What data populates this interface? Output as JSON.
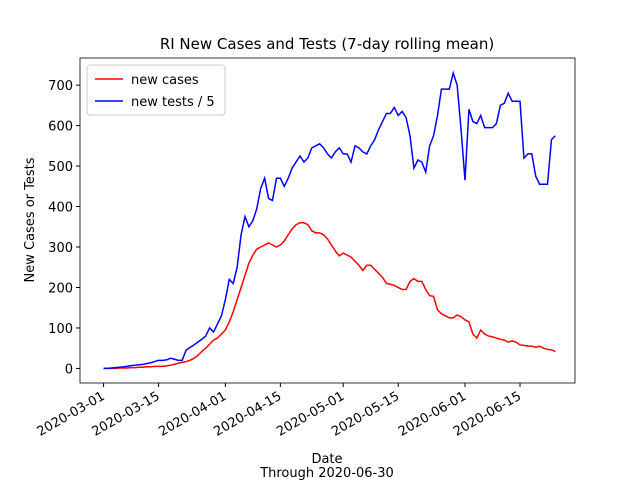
{
  "chart_data": {
    "type": "line",
    "title": "RI New Cases and Tests (7-day rolling mean)",
    "x_label": "Date",
    "subtitle": "Through 2020-06-30",
    "y_label": "New Cases or Tests",
    "legend": "upper left",
    "x": [
      "2020-03-01",
      "2020-03-02",
      "2020-03-03",
      "2020-03-04",
      "2020-03-05",
      "2020-03-06",
      "2020-03-07",
      "2020-03-08",
      "2020-03-09",
      "2020-03-10",
      "2020-03-11",
      "2020-03-12",
      "2020-03-13",
      "2020-03-14",
      "2020-03-15",
      "2020-03-16",
      "2020-03-17",
      "2020-03-18",
      "2020-03-19",
      "2020-03-20",
      "2020-03-21",
      "2020-03-22",
      "2020-03-23",
      "2020-03-24",
      "2020-03-25",
      "2020-03-26",
      "2020-03-27",
      "2020-03-28",
      "2020-03-29",
      "2020-03-30",
      "2020-03-31",
      "2020-04-01",
      "2020-04-02",
      "2020-04-03",
      "2020-04-04",
      "2020-04-05",
      "2020-04-06",
      "2020-04-07",
      "2020-04-08",
      "2020-04-09",
      "2020-04-10",
      "2020-04-11",
      "2020-04-12",
      "2020-04-13",
      "2020-04-14",
      "2020-04-15",
      "2020-04-16",
      "2020-04-17",
      "2020-04-18",
      "2020-04-19",
      "2020-04-20",
      "2020-04-21",
      "2020-04-22",
      "2020-04-23",
      "2020-04-24",
      "2020-04-25",
      "2020-04-26",
      "2020-04-27",
      "2020-04-28",
      "2020-04-29",
      "2020-04-30",
      "2020-05-01",
      "2020-05-02",
      "2020-05-03",
      "2020-05-04",
      "2020-05-05",
      "2020-05-06",
      "2020-05-07",
      "2020-05-08",
      "2020-05-09",
      "2020-05-10",
      "2020-05-11",
      "2020-05-12",
      "2020-05-13",
      "2020-05-14",
      "2020-05-15",
      "2020-05-16",
      "2020-05-17",
      "2020-05-18",
      "2020-05-19",
      "2020-05-20",
      "2020-05-21",
      "2020-05-22",
      "2020-05-23",
      "2020-05-24",
      "2020-05-25",
      "2020-05-26",
      "2020-05-27",
      "2020-05-28",
      "2020-05-29",
      "2020-05-30",
      "2020-05-31",
      "2020-06-01",
      "2020-06-02",
      "2020-06-03",
      "2020-06-04",
      "2020-06-05",
      "2020-06-06",
      "2020-06-07",
      "2020-06-08",
      "2020-06-09",
      "2020-06-10",
      "2020-06-11",
      "2020-06-12",
      "2020-06-13",
      "2020-06-14",
      "2020-06-15",
      "2020-06-16",
      "2020-06-17",
      "2020-06-18",
      "2020-06-19",
      "2020-06-20",
      "2020-06-21",
      "2020-06-22",
      "2020-06-23",
      "2020-06-24"
    ],
    "series": [
      {
        "name": "new cases",
        "color": "#ff0000",
        "values": [
          0,
          0,
          0,
          0,
          1,
          1,
          1,
          2,
          2,
          3,
          3,
          4,
          4,
          5,
          5,
          5,
          6,
          8,
          10,
          13,
          15,
          17,
          20,
          25,
          32,
          42,
          50,
          60,
          70,
          75,
          85,
          95,
          115,
          140,
          170,
          200,
          230,
          260,
          280,
          295,
          300,
          305,
          310,
          305,
          300,
          305,
          315,
          330,
          345,
          355,
          360,
          360,
          355,
          340,
          335,
          335,
          330,
          320,
          305,
          290,
          278,
          285,
          280,
          275,
          265,
          255,
          242,
          255,
          255,
          245,
          235,
          225,
          210,
          208,
          205,
          200,
          195,
          195,
          215,
          222,
          215,
          215,
          195,
          180,
          178,
          145,
          135,
          130,
          125,
          125,
          132,
          128,
          120,
          115,
          85,
          75,
          95,
          85,
          80,
          78,
          75,
          72,
          70,
          65,
          68,
          65,
          58,
          57,
          55,
          55,
          52,
          55,
          50,
          47,
          46,
          42
        ]
      },
      {
        "name": "new tests / 5",
        "color": "#0000ff",
        "values": [
          0,
          0,
          1,
          2,
          3,
          4,
          5,
          7,
          8,
          9,
          10,
          12,
          14,
          17,
          20,
          20,
          21,
          25,
          23,
          20,
          20,
          45,
          52,
          58,
          65,
          72,
          80,
          100,
          90,
          110,
          130,
          170,
          220,
          210,
          250,
          330,
          375,
          350,
          365,
          395,
          445,
          470,
          420,
          415,
          470,
          470,
          450,
          470,
          495,
          510,
          525,
          510,
          520,
          545,
          550,
          555,
          545,
          530,
          520,
          535,
          545,
          530,
          530,
          510,
          550,
          545,
          535,
          530,
          550,
          565,
          590,
          610,
          630,
          630,
          645,
          625,
          635,
          620,
          575,
          495,
          515,
          510,
          485,
          550,
          575,
          625,
          690,
          690,
          690,
          730,
          700,
          590,
          465,
          640,
          610,
          605,
          625,
          595,
          595,
          595,
          605,
          650,
          655,
          680,
          660,
          660,
          660,
          520,
          530,
          530,
          475,
          455,
          455,
          455,
          565,
          575
        ]
      }
    ],
    "xlim": [
      "2020-02-24",
      "2020-06-29"
    ],
    "xticks": [
      "2020-03-01",
      "2020-03-15",
      "2020-04-01",
      "2020-04-15",
      "2020-05-01",
      "2020-05-15",
      "2020-06-01",
      "2020-06-15"
    ],
    "ylim": [
      -36,
      767
    ],
    "yticks": [
      0,
      100,
      200,
      300,
      400,
      500,
      600,
      700
    ]
  }
}
